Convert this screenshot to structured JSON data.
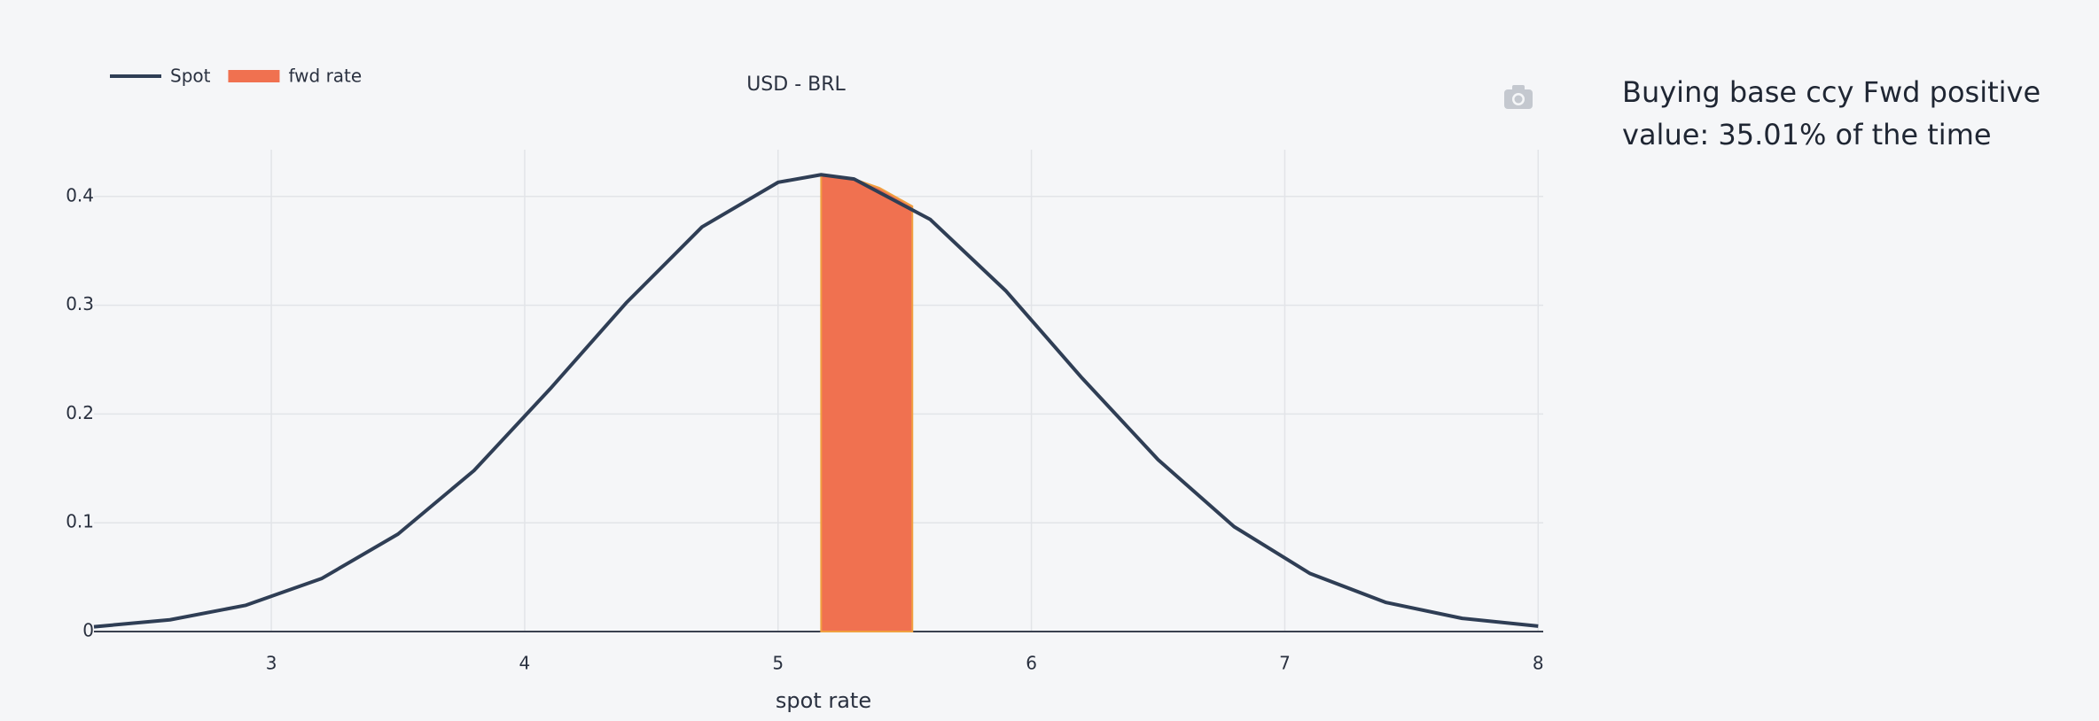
{
  "chart_data": {
    "type": "line",
    "title": "USD - BRL",
    "x_label": "spot rate",
    "xlim": [
      2.3,
      8.02
    ],
    "ylim": [
      0,
      0.443
    ],
    "xticks": [
      3,
      4,
      5,
      6,
      7,
      8
    ],
    "yticks": [
      0,
      0.1,
      0.2,
      0.3,
      0.4
    ],
    "grid": true,
    "series": [
      {
        "name": "Spot",
        "color": "#2f3e55",
        "area": false,
        "x": [
          2.3,
          2.6,
          2.9,
          3.2,
          3.5,
          3.8,
          4.1,
          4.4,
          4.7,
          5.0,
          5.17,
          5.3,
          5.6,
          5.9,
          6.2,
          6.5,
          6.8,
          7.1,
          7.4,
          7.7,
          8.0
        ],
        "values": [
          0.0044,
          0.0108,
          0.0242,
          0.0489,
          0.0896,
          0.148,
          0.223,
          0.302,
          0.372,
          0.413,
          0.42,
          0.416,
          0.379,
          0.313,
          0.233,
          0.158,
          0.0964,
          0.0533,
          0.0267,
          0.0121,
          0.005
        ]
      },
      {
        "name": "fwd rate",
        "color": "#f07150",
        "area": true,
        "x": [
          5.17,
          5.3,
          5.4,
          5.53
        ],
        "values": [
          0.42,
          0.416,
          0.408,
          0.391
        ]
      }
    ]
  },
  "side_note": "Buying base ccy Fwd positive value: 35.01% of the time"
}
